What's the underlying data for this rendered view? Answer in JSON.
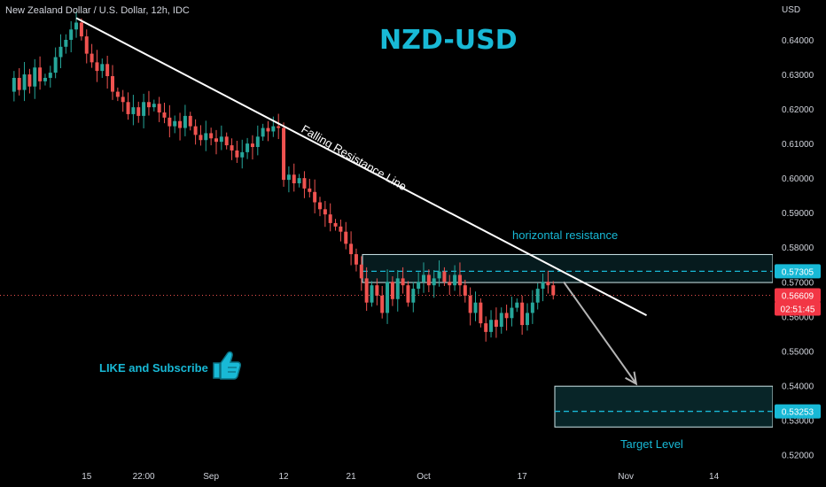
{
  "header": {
    "symbol_title": "New Zealand Dollar / U.S. Dollar, 12h, IDC",
    "pair_title": "NZD-USD",
    "axis_unit": "USD"
  },
  "annotations": {
    "falling_resistance": "Falling Resistance Line",
    "horizontal_resistance": "horizontal resistance",
    "target_level": "Target Level",
    "like_subscribe": "LIKE and Subscribe"
  },
  "icons": {
    "thumb": "thumbs-up-icon"
  },
  "colors": {
    "background": "#000000",
    "up_candle": "#26a69a",
    "down_candle": "#ef5350",
    "accent": "#18b9d6",
    "zone_fill": "#0b3236",
    "price_badge_red": "#f23645",
    "price_badge_teal": "#18b9d6"
  },
  "price_labels": {
    "resistance": "0.57305",
    "current": "0.56609",
    "countdown": "02:51:45",
    "target": "0.53253"
  },
  "chart_data": {
    "type": "candlestick",
    "title": "NZD-USD",
    "subtitle": "New Zealand Dollar / U.S. Dollar, 12h, IDC",
    "ylabel": "USD",
    "ylim": [
      0.5155,
      0.6483
    ],
    "y_ticks": [
      0.64,
      0.63,
      0.62,
      0.61,
      0.6,
      0.59,
      0.58,
      0.57,
      0.56,
      0.55,
      0.54,
      0.53,
      0.52
    ],
    "x_ticks": [
      {
        "label": "15",
        "index": 15
      },
      {
        "label": "22:00",
        "index": 26
      },
      {
        "label": "Sep",
        "index": 39
      },
      {
        "label": "12",
        "index": 53
      },
      {
        "label": "21",
        "index": 66
      },
      {
        "label": "Oct",
        "index": 80
      },
      {
        "label": "17",
        "index": 99
      },
      {
        "label": "Nov",
        "index": 119
      },
      {
        "label": "14",
        "index": 136
      }
    ],
    "grid": false,
    "close_path": [
      0.625,
      0.629,
      0.6255,
      0.63,
      0.6265,
      0.632,
      0.628,
      0.629,
      0.6305,
      0.635,
      0.638,
      0.64,
      0.643,
      0.645,
      0.641,
      0.636,
      0.6335,
      0.631,
      0.633,
      0.6295,
      0.625,
      0.6235,
      0.622,
      0.6185,
      0.6205,
      0.618,
      0.622,
      0.6205,
      0.6215,
      0.619,
      0.6175,
      0.615,
      0.6165,
      0.6145,
      0.618,
      0.615,
      0.6125,
      0.611,
      0.613,
      0.6115,
      0.6105,
      0.612,
      0.6095,
      0.608,
      0.606,
      0.6075,
      0.61,
      0.609,
      0.612,
      0.6145,
      0.6135,
      0.615,
      0.6145,
      0.5995,
      0.601,
      0.5985,
      0.6,
      0.597,
      0.596,
      0.593,
      0.591,
      0.5895,
      0.587,
      0.586,
      0.5845,
      0.581,
      0.578,
      0.575,
      0.571,
      0.564,
      0.569,
      0.566,
      0.561,
      0.57,
      0.565,
      0.571,
      0.569,
      0.564,
      0.568,
      0.57,
      0.572,
      0.569,
      0.571,
      0.573,
      0.57,
      0.569,
      0.572,
      0.569,
      0.566,
      0.561,
      0.564,
      0.558,
      0.5555,
      0.559,
      0.557,
      0.561,
      0.5595,
      0.5625,
      0.564,
      0.5575,
      0.561,
      0.564,
      0.568,
      0.57,
      0.569,
      0.5661
    ],
    "resistance_zone": [
      0.5698,
      0.5779
    ],
    "resistance_level": 0.57305,
    "current_price": 0.56609,
    "target_zone": [
      0.528,
      0.5398
    ],
    "target_level": 0.53253,
    "falling_resistance_line": [
      {
        "index": 13,
        "price": 0.6463
      },
      {
        "index": 123,
        "price": 0.5603
      }
    ],
    "projected_path": [
      {
        "index": 107,
        "price": 0.57
      },
      {
        "index": 121,
        "price": 0.5405
      }
    ]
  }
}
